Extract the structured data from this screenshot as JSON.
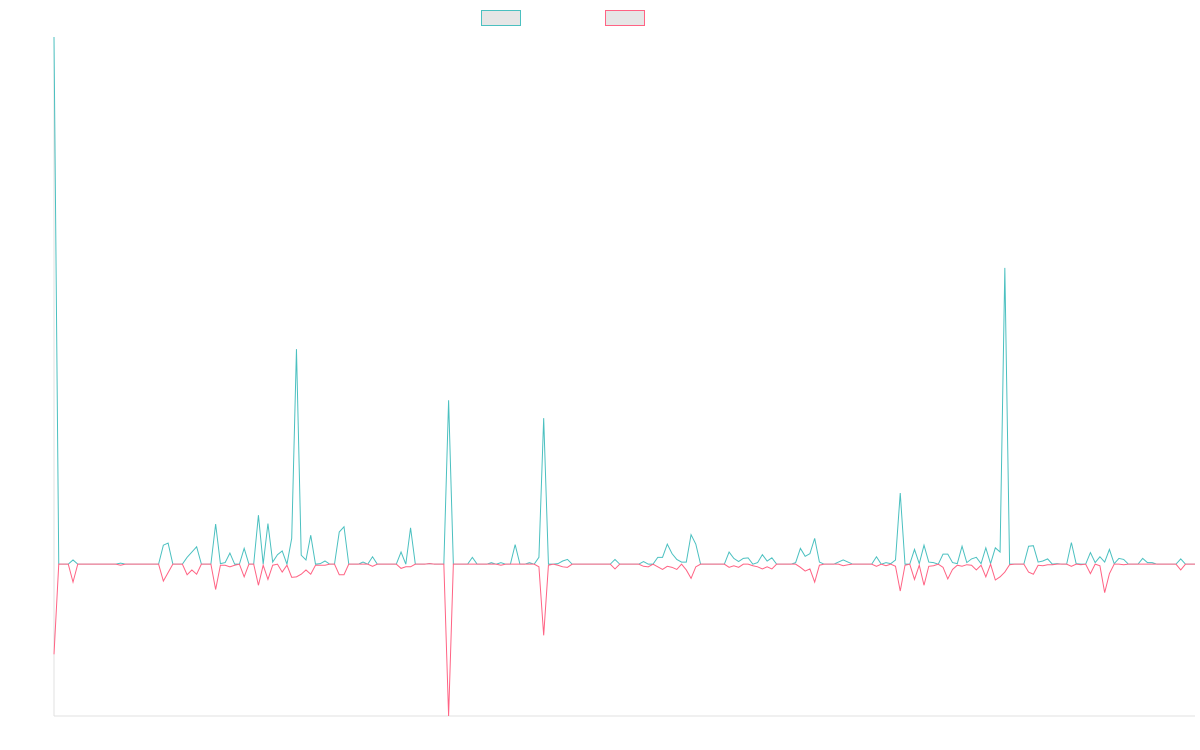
{
  "chart_data": {
    "type": "line",
    "title": "",
    "xlabel": "",
    "ylabel": "",
    "ylim": [
      -28.8,
      100
    ],
    "grid": false,
    "legend": "top",
    "series": [
      {
        "color": "#4bc0c0",
        "values": [
          100,
          0,
          0,
          0,
          0.8,
          0,
          0,
          0,
          0,
          0,
          0,
          0,
          0,
          0,
          0.2,
          0,
          0,
          0,
          0,
          0,
          0,
          0,
          0,
          3.6,
          4.0,
          0,
          0,
          0,
          1.3,
          2.3,
          3.3,
          0,
          0,
          0,
          7.6,
          0.1,
          0.3,
          2.1,
          0,
          0,
          3.0,
          0,
          0,
          9.3,
          0,
          7.7,
          0.4,
          1.8,
          2.5,
          0,
          4.9,
          40.8,
          1.7,
          0.8,
          5.5,
          0,
          0.1,
          0.6,
          0,
          0,
          6.1,
          7.1,
          0,
          0,
          0,
          0.4,
          0,
          1.4,
          0,
          0,
          0,
          0,
          0,
          2.3,
          0,
          6.9,
          0,
          0,
          0,
          0.1,
          0,
          0,
          0,
          31.1,
          0,
          0,
          0,
          0,
          1.3,
          0,
          0,
          0,
          0.3,
          0,
          0.3,
          0,
          0,
          3.7,
          0,
          0,
          0.3,
          0,
          1.3,
          27.7,
          0,
          0,
          0.1,
          0.6,
          0.9,
          0,
          0,
          0,
          0,
          0,
          0,
          0,
          0,
          0,
          0.9,
          0,
          0,
          0,
          0,
          0,
          0.5,
          0,
          0,
          1.3,
          1.3,
          3.8,
          2.0,
          0.9,
          0.4,
          0.4,
          5.6,
          3.8,
          0,
          0,
          0,
          0,
          0,
          0,
          2.3,
          1.1,
          0.5,
          1.1,
          1.2,
          0,
          0.3,
          1.8,
          0.6,
          1.2,
          0,
          0,
          0,
          0,
          0.3,
          3.0,
          1.5,
          2.0,
          4.9,
          0.4,
          0,
          0,
          0,
          0.4,
          0.8,
          0.4,
          0,
          0,
          0,
          0,
          0,
          1.4,
          0,
          0.3,
          0.1,
          0.8,
          13.5,
          0,
          0,
          2.8,
          0.1,
          3.6,
          0.4,
          0.3,
          0,
          1.9,
          1.9,
          0.3,
          0.1,
          3.4,
          0.3,
          1.0,
          1.3,
          0.1,
          3.1,
          0.1,
          3.1,
          2.3,
          56.2,
          0,
          0,
          0,
          0,
          3.4,
          3.5,
          0.4,
          0.6,
          1.0,
          0,
          0.1,
          0,
          0,
          4.1,
          0.1,
          0,
          0,
          2.2,
          0.3,
          1.4,
          0.4,
          2.8,
          0.1,
          1.1,
          0.9,
          0,
          0,
          0,
          1.1,
          0.3,
          0.3,
          0,
          0,
          0,
          0,
          0,
          1.0,
          0,
          0,
          0
        ]
      },
      {
        "color": "#ff6384",
        "values": [
          -17.1,
          0,
          0,
          0,
          -3.4,
          0,
          0,
          0,
          0,
          0,
          0,
          0,
          0,
          0,
          -0.2,
          0,
          0,
          0,
          0,
          0,
          0,
          0,
          0,
          -3.2,
          -1.6,
          0,
          0,
          0,
          -2.0,
          -1.1,
          -1.9,
          0,
          0,
          0,
          -4.8,
          -0.2,
          -0.2,
          -0.5,
          -0.2,
          0,
          -2.4,
          0,
          0,
          -4.0,
          -0.2,
          -2.9,
          -0.2,
          0,
          -1.5,
          -0.2,
          -2.5,
          -2.4,
          -1.9,
          -1.1,
          -1.9,
          -0.2,
          -0.2,
          -0.2,
          0,
          0,
          -2.0,
          -2.0,
          0,
          0,
          0,
          0,
          0,
          -0.4,
          0,
          0,
          0,
          0,
          0,
          -0.8,
          -0.5,
          -0.5,
          0,
          0,
          0,
          0.1,
          0,
          0,
          0,
          -28.8,
          0,
          0,
          0,
          0,
          0,
          0,
          0,
          0,
          0,
          0,
          -0.2,
          0,
          0,
          0,
          0,
          0,
          0,
          0,
          -0.5,
          -13.5,
          -0.2,
          0,
          -0.2,
          -0.5,
          -0.6,
          0,
          0,
          0,
          0,
          0,
          0,
          0,
          0,
          0,
          -0.9,
          0,
          0,
          0,
          0,
          0,
          -0.4,
          -0.5,
          0,
          -0.5,
          -1.0,
          -0.4,
          -0.6,
          -1.0,
          0,
          -1.1,
          -2.7,
          -0.5,
          0,
          0,
          0,
          0,
          0,
          0,
          -0.6,
          -0.3,
          -0.6,
          0,
          0,
          -0.3,
          -0.5,
          -0.9,
          -0.5,
          -0.9,
          0,
          0,
          0,
          0,
          0,
          -0.6,
          -1.3,
          -0.9,
          -3.4,
          -0.2,
          0,
          0,
          0,
          0,
          -0.3,
          -0.1,
          0,
          0,
          0,
          0,
          0,
          -0.4,
          0,
          -0.3,
          0,
          -0.4,
          -5.1,
          -0.2,
          0,
          -2.9,
          -0.2,
          -4.0,
          -0.4,
          -0.3,
          0,
          -0.6,
          -2.8,
          -1.0,
          -0.2,
          -0.4,
          -0.1,
          -0.2,
          -1.1,
          -0.2,
          -2.4,
          0,
          -3.0,
          -2.4,
          -1.5,
          -0.1,
          0,
          0,
          0,
          -1.5,
          -1.9,
          -0.2,
          -0.3,
          -0.1,
          -0.1,
          0,
          0,
          0,
          -0.4,
          0,
          -0.1,
          0,
          -1.8,
          0,
          -0.3,
          -5.4,
          -1.8,
          0,
          0,
          -0.1,
          0,
          0,
          0,
          0,
          0,
          0,
          0,
          0,
          0,
          0,
          0,
          -1.1,
          0,
          0,
          0
        ]
      }
    ]
  }
}
